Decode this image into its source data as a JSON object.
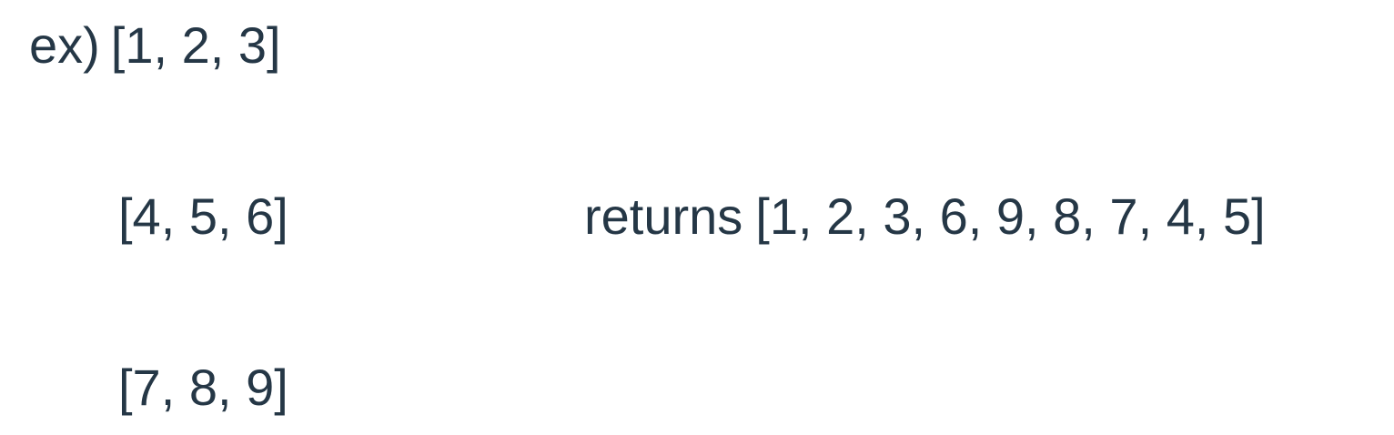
{
  "example": {
    "prefix": "ex)",
    "matrix": [
      "[1, 2, 3]",
      "[4, 5, 6]",
      "[7, 8, 9]"
    ],
    "result_label": "returns",
    "result_value": "[1, 2, 3, 6, 9, 8, 7, 4, 5]"
  },
  "colors": {
    "text": "#253746",
    "background": "#ffffff"
  }
}
